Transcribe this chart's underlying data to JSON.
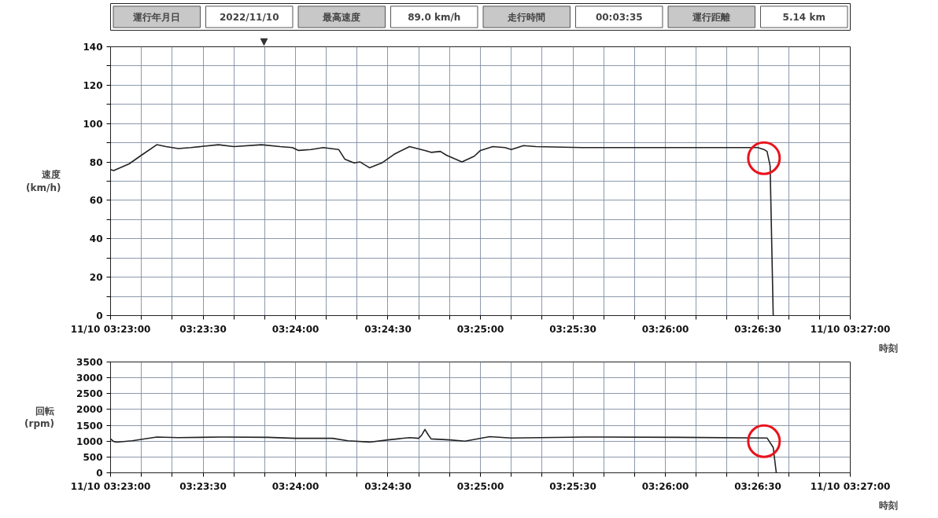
{
  "chart_data": [
    {
      "type": "other",
      "annotations": [
        "運行年月日",
        "2022/11/10",
        "最高速度",
        "89.0 km/h",
        "走行時間",
        "00:03:35",
        "運行距離",
        "5.14 km"
      ]
    },
    {
      "type": "line",
      "ylabel": "速度\n(km/h)",
      "xlabel": "時刻",
      "grid": true,
      "xlim": [
        3.383333,
        3.45
      ],
      "ylim": [
        0,
        140
      ],
      "xticks": [
        {
          "value": 3.383333,
          "label": "11/10 03:23:00"
        },
        {
          "value": 3.386111,
          "label": null
        },
        {
          "value": 3.388889,
          "label": null
        },
        {
          "value": 3.391667,
          "label": "03:23:30"
        },
        {
          "value": 3.394444,
          "label": null
        },
        {
          "value": 3.397222,
          "label": null
        },
        {
          "value": 3.4,
          "label": "03:24:00"
        },
        {
          "value": 3.402778,
          "label": null
        },
        {
          "value": 3.405556,
          "label": null
        },
        {
          "value": 3.408333,
          "label": "03:24:30"
        },
        {
          "value": 3.411111,
          "label": null
        },
        {
          "value": 3.413889,
          "label": null
        },
        {
          "value": 3.416667,
          "label": "03:25:00"
        },
        {
          "value": 3.419444,
          "label": null
        },
        {
          "value": 3.422222,
          "label": null
        },
        {
          "value": 3.425,
          "label": "03:25:30"
        },
        {
          "value": 3.427778,
          "label": null
        },
        {
          "value": 3.430556,
          "label": null
        },
        {
          "value": 3.433333,
          "label": "03:26:00"
        },
        {
          "value": 3.436111,
          "label": null
        },
        {
          "value": 3.438889,
          "label": null
        },
        {
          "value": 3.441667,
          "label": "03:26:30"
        },
        {
          "value": 3.444444,
          "label": null
        },
        {
          "value": 3.447222,
          "label": null
        },
        {
          "value": 3.45,
          "label": "11/10 03:27:00"
        }
      ],
      "yticks": [
        0,
        {
          "value": 10,
          "label": null
        },
        20,
        {
          "value": 30,
          "label": null
        },
        40,
        {
          "value": 50,
          "label": null
        },
        60,
        {
          "value": 70,
          "label": null
        },
        80,
        {
          "value": 90,
          "label": null
        },
        100,
        {
          "value": 110,
          "label": null
        },
        120,
        {
          "value": 130,
          "label": null
        },
        140
      ],
      "annotations": [
        "▼"
      ],
      "series": [
        {
          "type": "line",
          "color": "#222222",
          "x": [
            3.383333,
            3.383611,
            3.385,
            3.386111,
            3.3875,
            3.388333,
            3.389444,
            3.390556,
            3.393056,
            3.394444,
            3.396944,
            3.398611,
            3.399722,
            3.400278,
            3.401389,
            3.4025,
            3.403889,
            3.404444,
            3.405278,
            3.405833,
            3.406667,
            3.407778,
            3.408889,
            3.410278,
            3.411667,
            3.412222,
            3.413056,
            3.413611,
            3.415,
            3.416111,
            3.416667,
            3.417778,
            3.418889,
            3.419444,
            3.420556,
            3.421667,
            3.425833,
            3.431389,
            3.436944,
            3.441667,
            3.442222,
            3.4425,
            3.442778,
            3.443056
          ],
          "values": [
            76,
            75.5,
            79,
            83.5,
            89,
            88,
            87,
            87.5,
            89,
            88,
            89,
            88,
            87.5,
            86,
            86.5,
            87.5,
            86.5,
            81.5,
            79.5,
            80,
            77,
            79.5,
            84,
            88,
            86,
            85,
            85.5,
            83.5,
            80,
            83,
            86,
            88,
            87.5,
            86.5,
            88.5,
            88,
            87.5,
            87.5,
            87.5,
            87.5,
            86.5,
            85.5,
            78,
            0
          ]
        },
        {
          "type": "scatter",
          "marker": "circle",
          "color": "#e8141c",
          "x": [
            3.442222
          ],
          "values": [
            82
          ]
        }
      ]
    },
    {
      "type": "line",
      "ylabel": "回転\n(rpm)",
      "xlabel": "時刻",
      "grid": true,
      "xlim": [
        3.383333,
        3.45
      ],
      "ylim": [
        0,
        3500
      ],
      "xticks": [
        {
          "value": 3.383333,
          "label": "11/10 03:23:00"
        },
        {
          "value": 3.386111,
          "label": null
        },
        {
          "value": 3.388889,
          "label": null
        },
        {
          "value": 3.391667,
          "label": "03:23:30"
        },
        {
          "value": 3.394444,
          "label": null
        },
        {
          "value": 3.397222,
          "label": null
        },
        {
          "value": 3.4,
          "label": "03:24:00"
        },
        {
          "value": 3.402778,
          "label": null
        },
        {
          "value": 3.405556,
          "label": null
        },
        {
          "value": 3.408333,
          "label": "03:24:30"
        },
        {
          "value": 3.411111,
          "label": null
        },
        {
          "value": 3.413889,
          "label": null
        },
        {
          "value": 3.416667,
          "label": "03:25:00"
        },
        {
          "value": 3.419444,
          "label": null
        },
        {
          "value": 3.422222,
          "label": null
        },
        {
          "value": 3.425,
          "label": "03:25:30"
        },
        {
          "value": 3.427778,
          "label": null
        },
        {
          "value": 3.430556,
          "label": null
        },
        {
          "value": 3.433333,
          "label": "03:26:00"
        },
        {
          "value": 3.436111,
          "label": null
        },
        {
          "value": 3.438889,
          "label": null
        },
        {
          "value": 3.441667,
          "label": "03:26:30"
        },
        {
          "value": 3.444444,
          "label": null
        },
        {
          "value": 3.447222,
          "label": null
        },
        {
          "value": 3.45,
          "label": "11/10 03:27:00"
        }
      ],
      "yticks": [
        0,
        500,
        1000,
        1500,
        2000,
        2500,
        3000,
        3500
      ],
      "series": [
        {
          "type": "line",
          "color": "#222222",
          "x": [
            3.383333,
            3.383611,
            3.383889,
            3.385278,
            3.3875,
            3.389444,
            3.393333,
            3.3975,
            3.4,
            3.403333,
            3.404722,
            3.406667,
            3.408333,
            3.410278,
            3.411111,
            3.411389,
            3.411667,
            3.411944,
            3.412222,
            3.413889,
            3.415278,
            3.4175,
            3.419444,
            3.426111,
            3.434444,
            3.4425,
            3.443056,
            3.443333
          ],
          "values": [
            1070,
            990,
            970,
            1010,
            1130,
            1110,
            1130,
            1120,
            1090,
            1090,
            1010,
            970,
            1040,
            1110,
            1090,
            1200,
            1370,
            1210,
            1070,
            1040,
            1000,
            1140,
            1100,
            1130,
            1120,
            1100,
            800,
            0
          ]
        },
        {
          "type": "scatter",
          "marker": "circle",
          "color": "#e8141c",
          "x": [
            3.442222
          ],
          "values": [
            1000
          ]
        }
      ]
    }
  ]
}
